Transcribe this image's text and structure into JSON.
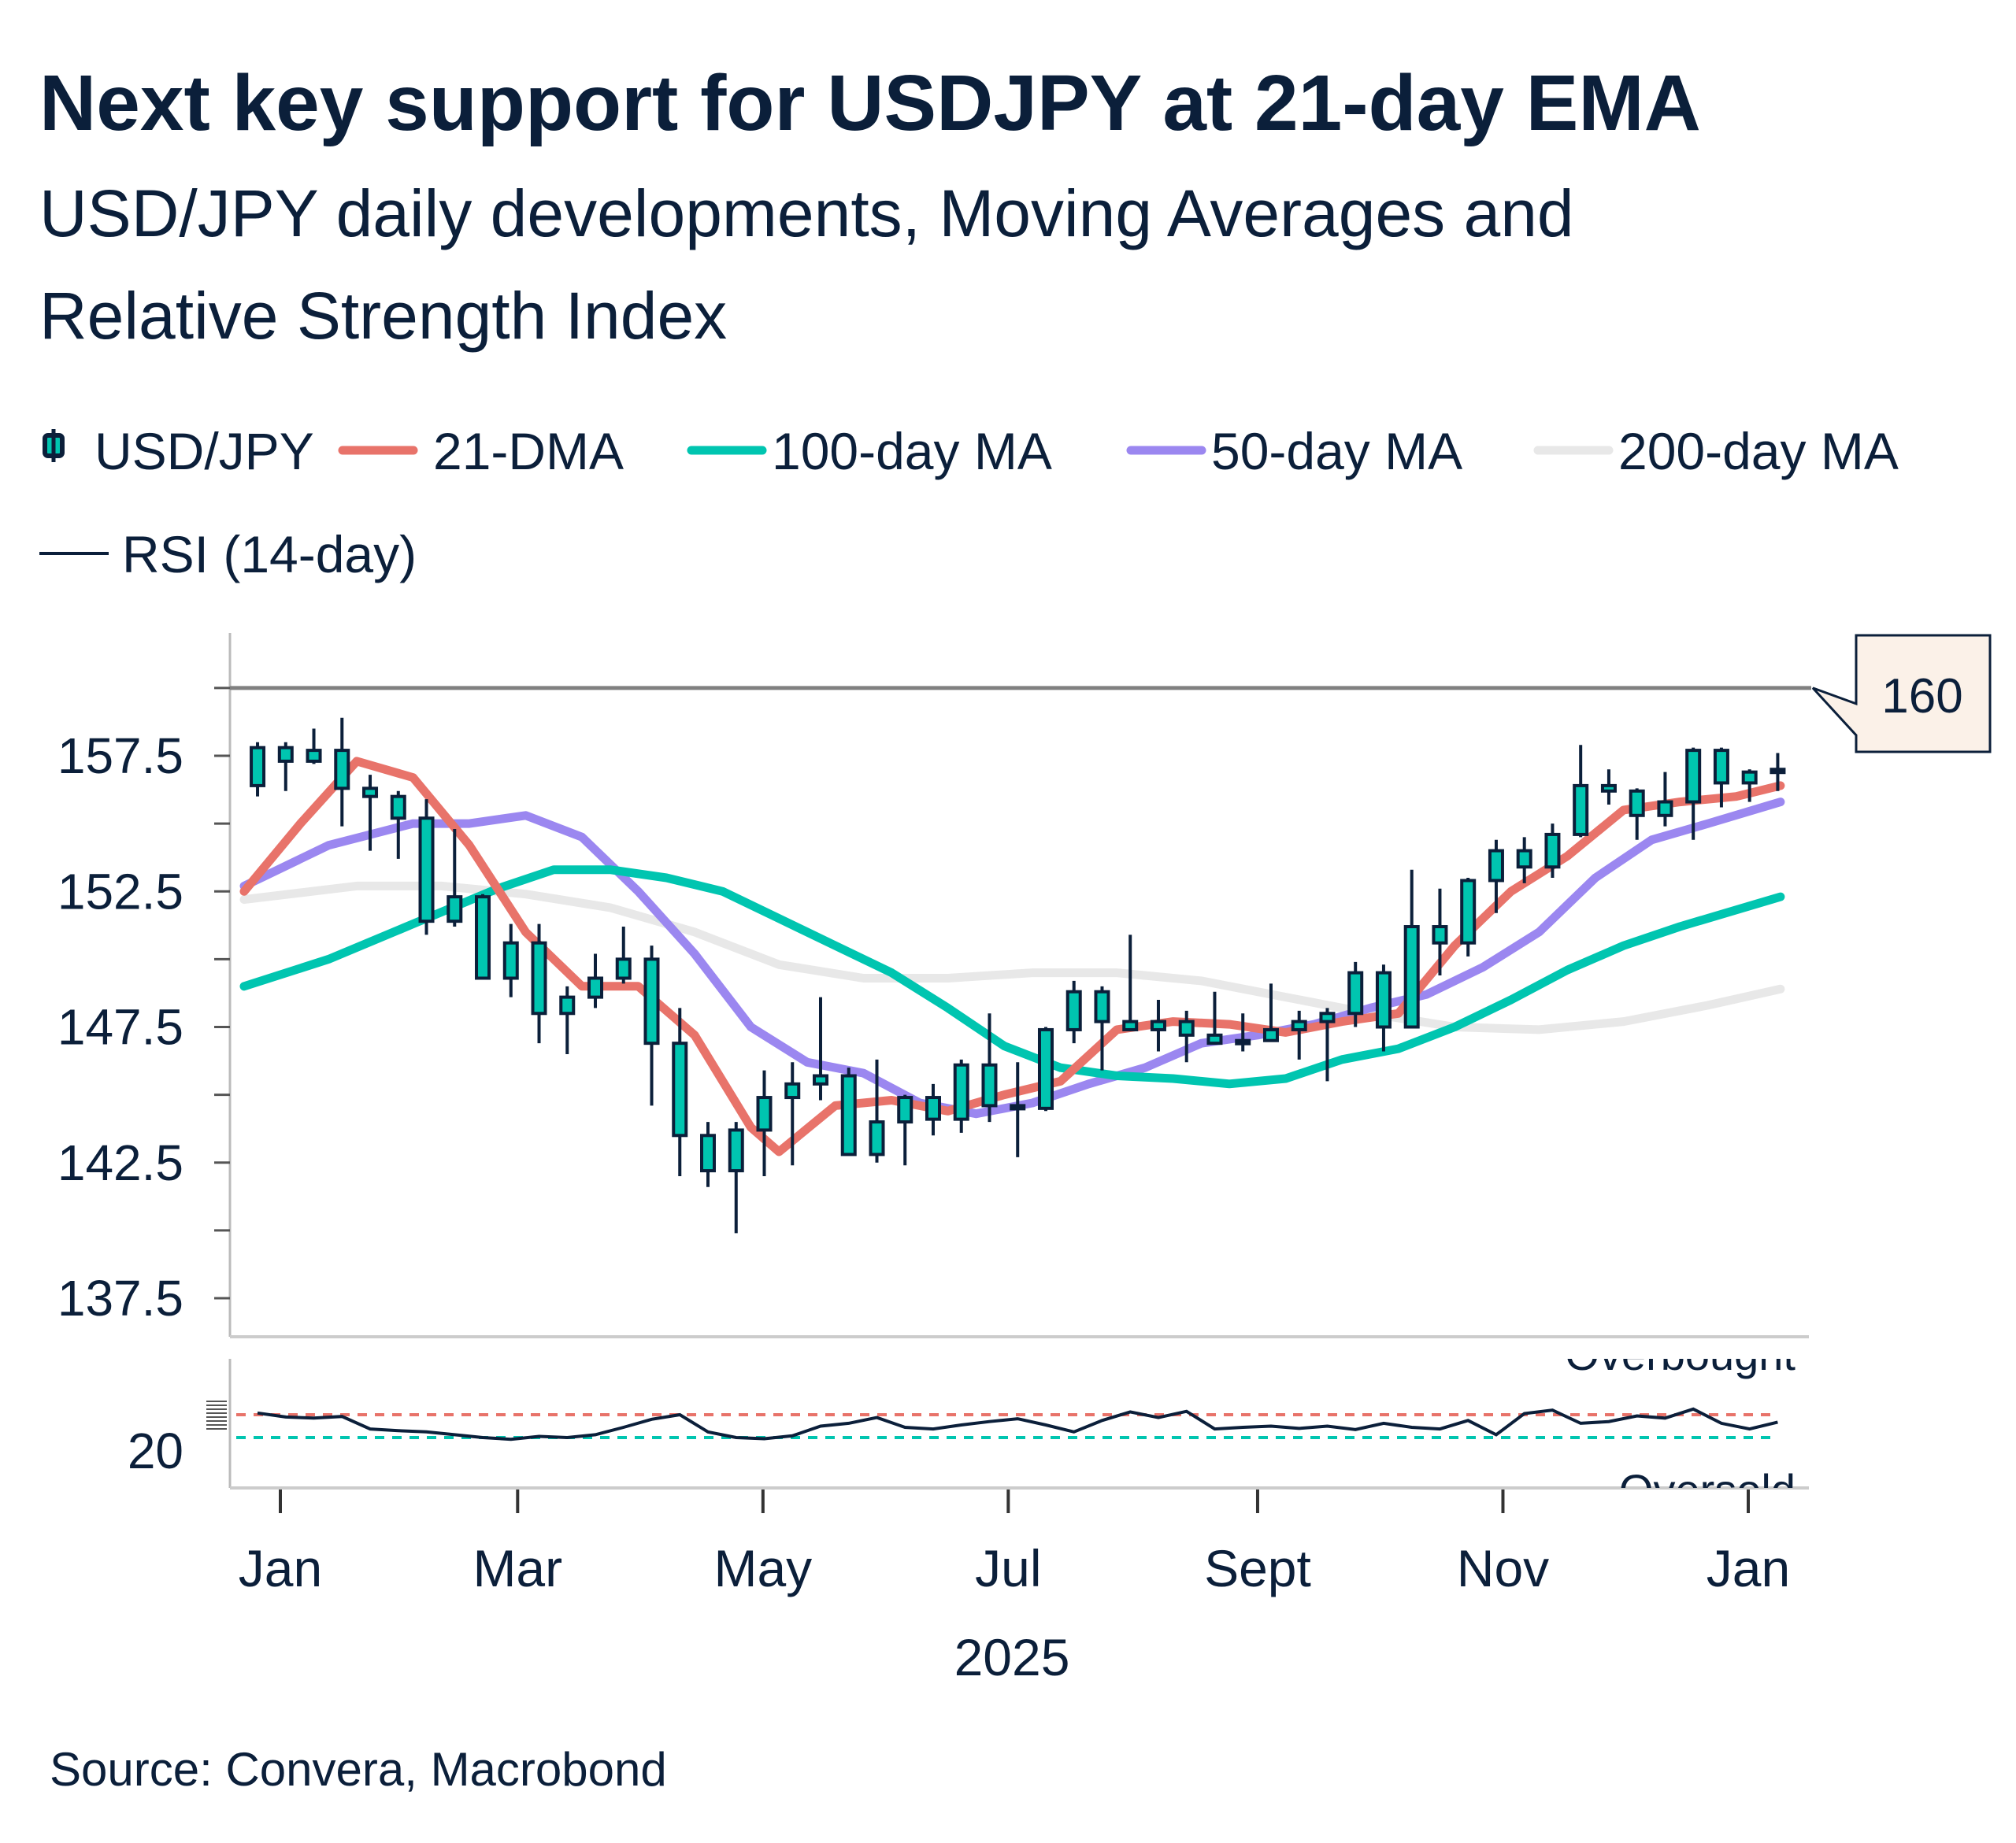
{
  "title": "Next key support for USDJPY at 21-day EMA",
  "subtitle_line1": "USD/JPY daily developments, Moving Averages and",
  "subtitle_line2": "Relative Strength Index",
  "source": "Source: Convera, Macrobond",
  "legend": [
    {
      "label": "USD/JPY",
      "color": "#00C5B0",
      "icon": "candlestick-icon"
    },
    {
      "label": "21-DMA",
      "color": "#E8736A"
    },
    {
      "label": "100-day MA",
      "color": "#00C5B0"
    },
    {
      "label": "50-day MA",
      "color": "#9B87F0"
    },
    {
      "label": "200-day MA",
      "color": "#E8E8E8"
    },
    {
      "label": "RSI (14-day)",
      "color": "#0B1F3A"
    }
  ],
  "chart_data": [
    {
      "type": "candlestick",
      "yticks": [
        "157.5",
        "152.5",
        "147.5",
        "142.5",
        "137.5"
      ],
      "ylim": [
        135,
        162
      ],
      "xticks": [
        "Jan",
        "Mar",
        "May",
        "Jul",
        "Sept",
        "Nov",
        "Jan"
      ],
      "xlabel": "2025",
      "reference_line": {
        "value": 160,
        "label": "160",
        "color": "#808080"
      },
      "candles": {
        "dates": [
          "2024-12-23",
          "2024-12-30",
          "2025-01-06",
          "2025-01-13",
          "2025-01-20",
          "2025-01-27",
          "2025-02-03",
          "2025-02-10",
          "2025-02-17",
          "2025-02-24",
          "2025-03-03",
          "2025-03-10",
          "2025-03-17",
          "2025-03-24",
          "2025-03-31",
          "2025-04-07",
          "2025-04-14",
          "2025-04-21",
          "2025-04-28",
          "2025-05-05",
          "2025-05-12",
          "2025-05-19",
          "2025-05-26",
          "2025-06-02",
          "2025-06-09",
          "2025-06-16",
          "2025-06-23",
          "2025-06-30",
          "2025-07-07",
          "2025-07-14",
          "2025-07-21",
          "2025-07-28",
          "2025-08-04",
          "2025-08-11",
          "2025-08-18",
          "2025-08-25",
          "2025-09-01",
          "2025-09-08",
          "2025-09-15",
          "2025-09-22",
          "2025-09-29",
          "2025-10-06",
          "2025-10-13",
          "2025-10-20",
          "2025-10-27",
          "2025-11-03",
          "2025-11-10",
          "2025-11-17",
          "2025-11-24",
          "2025-12-01",
          "2025-12-08",
          "2025-12-15",
          "2025-12-22",
          "2025-12-29",
          "2026-01-05"
        ],
        "ohlc": [
          [
            156.4,
            158.0,
            156.0,
            157.8
          ],
          [
            157.8,
            158.0,
            156.2,
            157.3
          ],
          [
            157.3,
            158.5,
            157.2,
            157.7
          ],
          [
            157.7,
            158.9,
            154.9,
            156.3
          ],
          [
            156.3,
            156.8,
            154.0,
            156.0
          ],
          [
            156.0,
            156.2,
            153.7,
            155.2
          ],
          [
            155.2,
            155.9,
            150.9,
            151.4
          ],
          [
            151.4,
            154.8,
            151.2,
            152.3
          ],
          [
            152.3,
            152.4,
            149.3,
            149.3
          ],
          [
            149.3,
            151.3,
            148.6,
            150.6
          ],
          [
            150.6,
            151.3,
            146.9,
            148.0
          ],
          [
            148.0,
            149.0,
            146.5,
            148.6
          ],
          [
            148.6,
            150.2,
            148.2,
            149.3
          ],
          [
            149.3,
            151.2,
            149.1,
            150.0
          ],
          [
            150.0,
            150.5,
            144.6,
            146.9
          ],
          [
            146.9,
            148.2,
            142.0,
            143.5
          ],
          [
            143.5,
            144.0,
            141.6,
            142.2
          ],
          [
            142.2,
            144.0,
            139.9,
            143.7
          ],
          [
            143.7,
            145.9,
            142.0,
            144.9
          ],
          [
            144.9,
            146.2,
            142.4,
            145.4
          ],
          [
            145.4,
            148.6,
            144.8,
            145.7
          ],
          [
            145.7,
            146.0,
            142.8,
            142.8
          ],
          [
            142.8,
            146.3,
            142.5,
            144.0
          ],
          [
            144.0,
            145.0,
            142.4,
            144.9
          ],
          [
            144.9,
            145.4,
            143.5,
            144.1
          ],
          [
            144.1,
            146.3,
            143.6,
            146.1
          ],
          [
            146.1,
            148.0,
            144.0,
            144.6
          ],
          [
            144.6,
            146.2,
            142.7,
            144.5
          ],
          [
            144.5,
            147.5,
            144.4,
            147.4
          ],
          [
            147.4,
            149.2,
            146.9,
            148.8
          ],
          [
            148.8,
            149.0,
            145.9,
            147.7
          ],
          [
            147.7,
            150.9,
            147.6,
            147.4
          ],
          [
            147.4,
            148.5,
            146.6,
            147.7
          ],
          [
            147.7,
            148.1,
            146.2,
            147.2
          ],
          [
            147.2,
            148.8,
            146.9,
            146.9
          ],
          [
            146.9,
            148.0,
            146.6,
            147.0
          ],
          [
            147.0,
            149.1,
            147.0,
            147.4
          ],
          [
            147.4,
            148.1,
            146.3,
            147.7
          ],
          [
            147.7,
            148.2,
            145.5,
            148.0
          ],
          [
            148.0,
            149.9,
            147.5,
            149.5
          ],
          [
            149.5,
            149.8,
            146.6,
            147.5
          ],
          [
            147.5,
            153.3,
            147.5,
            151.2
          ],
          [
            151.2,
            152.6,
            149.4,
            150.6
          ],
          [
            150.6,
            153.0,
            150.1,
            152.9
          ],
          [
            152.9,
            154.4,
            151.7,
            154.0
          ],
          [
            154.0,
            154.5,
            152.8,
            153.4
          ],
          [
            153.4,
            155.0,
            153.0,
            154.6
          ],
          [
            154.6,
            157.9,
            154.5,
            156.4
          ],
          [
            156.4,
            157.0,
            155.7,
            156.2
          ],
          [
            156.2,
            156.3,
            154.4,
            155.3
          ],
          [
            155.3,
            156.9,
            154.9,
            155.8
          ],
          [
            155.8,
            157.8,
            154.4,
            157.7
          ],
          [
            157.7,
            157.8,
            155.6,
            156.5
          ],
          [
            156.5,
            157.0,
            155.8,
            156.9
          ],
          [
            156.9,
            157.6,
            156.2,
            157.0
          ]
        ]
      },
      "series": [
        {
          "name": "21-DMA",
          "color": "#E8736A",
          "points": [
            [
              "2024-12-23",
              152.5
            ],
            [
              "2025-01-06",
              155.0
            ],
            [
              "2025-01-20",
              157.3
            ],
            [
              "2025-02-03",
              156.7
            ],
            [
              "2025-02-17",
              154.2
            ],
            [
              "2025-03-03",
              151.0
            ],
            [
              "2025-03-17",
              149.0
            ],
            [
              "2025-03-31",
              149.0
            ],
            [
              "2025-04-14",
              147.2
            ],
            [
              "2025-04-28",
              143.8
            ],
            [
              "2025-05-05",
              142.9
            ],
            [
              "2025-05-19",
              144.6
            ],
            [
              "2025-06-02",
              144.8
            ],
            [
              "2025-06-16",
              144.4
            ],
            [
              "2025-06-30",
              145.0
            ],
            [
              "2025-07-14",
              145.5
            ],
            [
              "2025-07-28",
              147.4
            ],
            [
              "2025-08-11",
              147.7
            ],
            [
              "2025-08-25",
              147.6
            ],
            [
              "2025-09-08",
              147.3
            ],
            [
              "2025-09-22",
              147.7
            ],
            [
              "2025-10-06",
              148.0
            ],
            [
              "2025-10-20",
              150.5
            ],
            [
              "2025-11-03",
              152.5
            ],
            [
              "2025-11-17",
              153.8
            ],
            [
              "2025-12-01",
              155.5
            ],
            [
              "2025-12-15",
              155.8
            ],
            [
              "2025-12-29",
              156.0
            ],
            [
              "2026-01-09",
              156.4
            ]
          ]
        },
        {
          "name": "100-day MA",
          "color": "#00C5B0",
          "points": [
            [
              "2024-12-23",
              149.0
            ],
            [
              "2025-01-13",
              150.0
            ],
            [
              "2025-02-03",
              151.3
            ],
            [
              "2025-02-24",
              152.6
            ],
            [
              "2025-03-10",
              153.3
            ],
            [
              "2025-03-24",
              153.3
            ],
            [
              "2025-04-07",
              153.0
            ],
            [
              "2025-04-21",
              152.5
            ],
            [
              "2025-05-05",
              151.5
            ],
            [
              "2025-05-19",
              150.5
            ],
            [
              "2025-06-02",
              149.5
            ],
            [
              "2025-06-16",
              148.2
            ],
            [
              "2025-06-30",
              146.8
            ],
            [
              "2025-07-14",
              146.0
            ],
            [
              "2025-07-28",
              145.7
            ],
            [
              "2025-08-11",
              145.6
            ],
            [
              "2025-08-25",
              145.4
            ],
            [
              "2025-09-08",
              145.6
            ],
            [
              "2025-09-22",
              146.3
            ],
            [
              "2025-10-06",
              146.7
            ],
            [
              "2025-10-20",
              147.5
            ],
            [
              "2025-11-03",
              148.5
            ],
            [
              "2025-11-17",
              149.6
            ],
            [
              "2025-12-01",
              150.5
            ],
            [
              "2025-12-15",
              151.2
            ],
            [
              "2026-01-09",
              152.3
            ]
          ]
        },
        {
          "name": "50-day MA",
          "color": "#9B87F0",
          "points": [
            [
              "2024-12-23",
              152.7
            ],
            [
              "2025-01-13",
              154.2
            ],
            [
              "2025-02-03",
              155.0
            ],
            [
              "2025-02-17",
              155.0
            ],
            [
              "2025-03-03",
              155.3
            ],
            [
              "2025-03-17",
              154.5
            ],
            [
              "2025-03-31",
              152.5
            ],
            [
              "2025-04-14",
              150.2
            ],
            [
              "2025-04-28",
              147.5
            ],
            [
              "2025-05-12",
              146.2
            ],
            [
              "2025-05-26",
              145.8
            ],
            [
              "2025-06-09",
              144.7
            ],
            [
              "2025-06-23",
              144.3
            ],
            [
              "2025-07-07",
              144.7
            ],
            [
              "2025-07-21",
              145.4
            ],
            [
              "2025-08-04",
              146.0
            ],
            [
              "2025-08-18",
              146.9
            ],
            [
              "2025-09-01",
              147.2
            ],
            [
              "2025-09-15",
              147.6
            ],
            [
              "2025-09-29",
              148.2
            ],
            [
              "2025-10-13",
              148.7
            ],
            [
              "2025-10-27",
              149.7
            ],
            [
              "2025-11-10",
              151.0
            ],
            [
              "2025-11-24",
              153.0
            ],
            [
              "2025-12-08",
              154.4
            ],
            [
              "2025-12-22",
              155.0
            ],
            [
              "2026-01-09",
              155.8
            ]
          ]
        },
        {
          "name": "200-day MA",
          "color": "#E8E8E8",
          "points": [
            [
              "2024-12-23",
              152.2
            ],
            [
              "2025-01-20",
              152.7
            ],
            [
              "2025-02-10",
              152.7
            ],
            [
              "2025-03-03",
              152.4
            ],
            [
              "2025-03-24",
              151.9
            ],
            [
              "2025-04-14",
              151.0
            ],
            [
              "2025-05-05",
              149.8
            ],
            [
              "2025-05-26",
              149.3
            ],
            [
              "2025-06-16",
              149.3
            ],
            [
              "2025-07-07",
              149.5
            ],
            [
              "2025-07-28",
              149.5
            ],
            [
              "2025-08-18",
              149.2
            ],
            [
              "2025-09-08",
              148.6
            ],
            [
              "2025-09-29",
              148.0
            ],
            [
              "2025-10-20",
              147.5
            ],
            [
              "2025-11-10",
              147.4
            ],
            [
              "2025-12-01",
              147.7
            ],
            [
              "2025-12-22",
              148.3
            ],
            [
              "2026-01-09",
              148.9
            ]
          ]
        }
      ]
    },
    {
      "type": "line",
      "name": "RSI (14-day)",
      "ytick": "20",
      "overbought": {
        "value": 70,
        "label": "Overbought",
        "color": "#E8736A"
      },
      "oversold": {
        "value": 30,
        "label": "Oversold",
        "color": "#00C5B0"
      },
      "values": [
        73,
        66,
        64,
        67,
        45,
        42,
        40,
        35,
        30,
        27,
        32,
        30,
        35,
        48,
        62,
        70,
        40,
        30,
        28,
        33,
        50,
        55,
        65,
        48,
        45,
        52,
        58,
        63,
        52,
        40,
        60,
        75,
        65,
        76,
        45,
        48,
        50,
        46,
        50,
        44,
        55,
        48,
        45,
        60,
        35,
        72,
        78,
        55,
        58,
        68,
        64,
        80,
        55,
        45,
        57
      ]
    }
  ]
}
